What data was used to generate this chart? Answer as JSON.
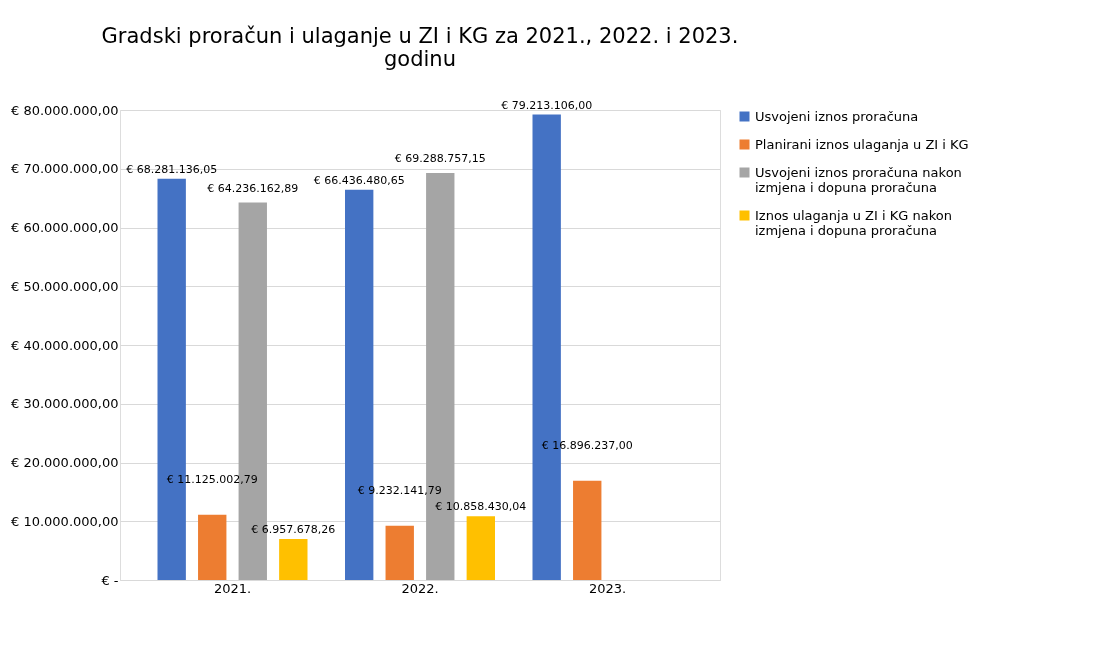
{
  "chart_data": {
    "type": "bar",
    "title": "Gradski proračun i ulaganje u ZI i KG za 2021., 2022. i 2023. godinu",
    "categories": [
      "2021.",
      "2022.",
      "2023."
    ],
    "series": [
      {
        "name": "Usvojeni iznos proračuna",
        "color": "#4472c4",
        "values": [
          68281136.05,
          66436480.65,
          79213106.0
        ],
        "value_labels": [
          "€ 68.281.136,05",
          "€ 66.436.480,65",
          "€ 79.213.106,00"
        ]
      },
      {
        "name": "Planirani iznos ulaganja u ZI i KG",
        "color": "#ed7d31",
        "values": [
          11125002.79,
          9232141.79,
          16896237.0
        ],
        "value_labels": [
          "€ 11.125.002,79",
          "€ 9.232.141,79",
          "€ 16.896.237,00"
        ]
      },
      {
        "name": "Usvojeni iznos proračuna nakon izmjena i dopuna proračuna",
        "color": "#a5a5a5",
        "values": [
          64236162.89,
          69288757.15,
          null
        ],
        "value_labels": [
          "€ 64.236.162,89",
          "€ 69.288.757,15",
          null
        ]
      },
      {
        "name": "Iznos ulaganja u ZI i KG nakon izmjena i dopuna proračuna",
        "color": "#ffc000",
        "values": [
          6957678.26,
          10858430.04,
          null
        ],
        "value_labels": [
          "€ 6.957.678,26",
          "€ 10.858.430,04",
          null
        ]
      }
    ],
    "ylim": [
      0,
      80000000
    ],
    "yticks": [
      {
        "value": 0,
        "label": "€ -"
      },
      {
        "value": 10000000,
        "label": "€ 10.000.000,00"
      },
      {
        "value": 20000000,
        "label": "€ 20.000.000,00"
      },
      {
        "value": 30000000,
        "label": "€ 30.000.000,00"
      },
      {
        "value": 40000000,
        "label": "€ 40.000.000,00"
      },
      {
        "value": 50000000,
        "label": "€ 50.000.000,00"
      },
      {
        "value": 60000000,
        "label": "€ 60.000.000,00"
      },
      {
        "value": 70000000,
        "label": "€ 70.000.000,00"
      },
      {
        "value": 80000000,
        "label": "€ 80.000.000,00"
      }
    ],
    "grid": "y",
    "legend": "right"
  }
}
